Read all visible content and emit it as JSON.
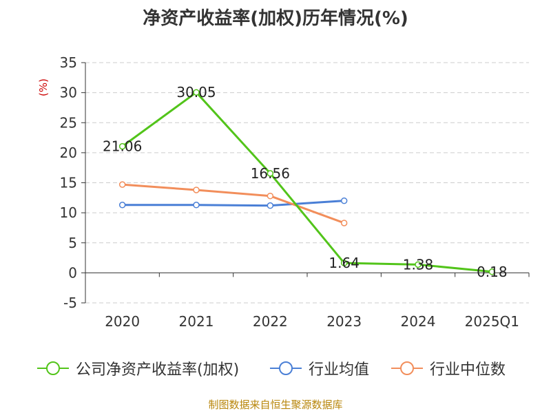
{
  "title": "净资产收益率(加权)历年情况(%)",
  "source": "制图数据来自恒生聚源数据库",
  "chart_data": {
    "type": "line",
    "title": "净资产收益率(加权)历年情况(%)",
    "ylabel": "(%)",
    "xlabel": "",
    "categories": [
      "2020",
      "2021",
      "2022",
      "2023",
      "2024",
      "2025Q1"
    ],
    "ylim": [
      -5,
      35
    ],
    "yticks": [
      "-5",
      "0",
      "5",
      "10",
      "15",
      "20",
      "25",
      "30",
      "35"
    ],
    "grid": true,
    "legend_position": "bottom",
    "series": [
      {
        "name": "公司净资产收益率(加权)",
        "color": "#52c41a",
        "values": [
          21.06,
          30.05,
          16.56,
          1.64,
          1.38,
          0.18
        ],
        "labels": [
          "21.06",
          "30.05",
          "16.56",
          "1.64",
          "1.38",
          "0.18"
        ]
      },
      {
        "name": "行业均值",
        "color": "#4a7fd6",
        "values": [
          11.3,
          11.3,
          11.2,
          12.0,
          null,
          null
        ]
      },
      {
        "name": "行业中位数",
        "color": "#f28e5b",
        "values": [
          14.7,
          13.8,
          12.8,
          8.3,
          null,
          null
        ]
      }
    ]
  }
}
